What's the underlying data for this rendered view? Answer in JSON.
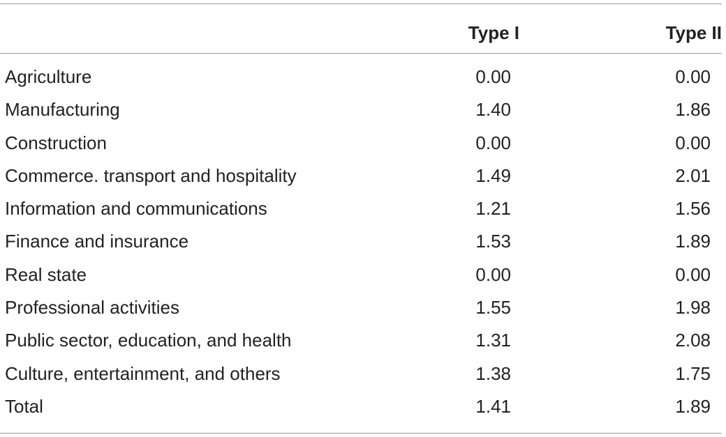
{
  "table": {
    "columns": [
      "",
      "Type I",
      "Type II"
    ],
    "rows": [
      {
        "label": "Agriculture",
        "type_i": "0.00",
        "type_ii": "0.00"
      },
      {
        "label": "Manufacturing",
        "type_i": "1.40",
        "type_ii": "1.86"
      },
      {
        "label": "Construction",
        "type_i": "0.00",
        "type_ii": "0.00"
      },
      {
        "label": "Commerce. transport and hospitality",
        "type_i": "1.49",
        "type_ii": "2.01"
      },
      {
        "label": "Information and communications",
        "type_i": "1.21",
        "type_ii": "1.56"
      },
      {
        "label": "Finance and insurance",
        "type_i": "1.53",
        "type_ii": "1.89"
      },
      {
        "label": "Real state",
        "type_i": "0.00",
        "type_ii": "0.00"
      },
      {
        "label": "Professional activities",
        "type_i": "1.55",
        "type_ii": "1.98"
      },
      {
        "label": "Public sector, education, and health",
        "type_i": "1.31",
        "type_ii": "2.08"
      },
      {
        "label": "Culture, entertainment, and others",
        "type_i": "1.38",
        "type_ii": "1.75"
      },
      {
        "label": "Total",
        "type_i": "1.41",
        "type_ii": "1.89"
      }
    ]
  },
  "colors": {
    "text": "#222222",
    "rule": "#9a9a9a",
    "background": "#ffffff"
  }
}
